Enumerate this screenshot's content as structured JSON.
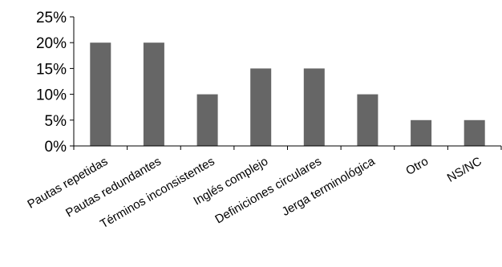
{
  "chart_data": {
    "type": "bar",
    "categories": [
      "Pautas repetidas",
      "Pautas redundantes",
      "Términos inconsistentes",
      "Inglés complejo",
      "Definiciones circulares",
      "Jerga terminológica",
      "Otro",
      "NS/NC"
    ],
    "values": [
      20,
      20,
      10,
      15,
      15,
      10,
      5,
      5
    ],
    "ylim": [
      0,
      25
    ],
    "yticks": [
      "0%",
      "5%",
      "10%",
      "15%",
      "20%",
      "25%"
    ],
    "title": "",
    "xlabel": "",
    "ylabel": "",
    "grid": false,
    "colors": {
      "bar": "#666666",
      "axis": "#000000"
    }
  }
}
